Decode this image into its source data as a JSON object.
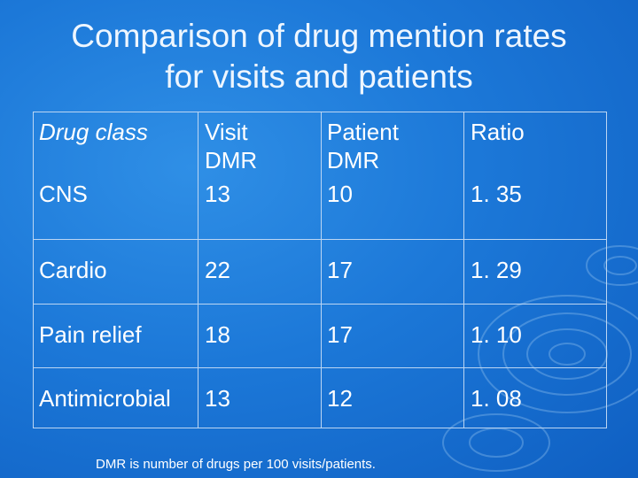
{
  "title": {
    "line1": "Comparison of drug mention rates",
    "line2": "for visits and patients"
  },
  "table": {
    "headers": {
      "drug_class": "Drug class",
      "visit_dmr_line1": "Visit",
      "visit_dmr_line2": "DMR",
      "patient_dmr_line1": "Patient",
      "patient_dmr_line2": "DMR",
      "ratio": "Ratio"
    },
    "rows": [
      {
        "drug_class": "CNS",
        "visit_dmr": "13",
        "patient_dmr": "10",
        "ratio": "1. 35"
      },
      {
        "drug_class": "Cardio",
        "visit_dmr": "22",
        "patient_dmr": "17",
        "ratio": "1. 29"
      },
      {
        "drug_class": "Pain relief",
        "visit_dmr": "18",
        "patient_dmr": "17",
        "ratio": "1. 10"
      },
      {
        "drug_class": "Antimicrobial",
        "visit_dmr": "13",
        "patient_dmr": "12",
        "ratio": "1. 08"
      }
    ]
  },
  "footnote": "DMR is number of drugs per 100 visits/patients.",
  "colors": {
    "background": "#1c78d8",
    "text": "#ffffff",
    "border": "#bcd6f3"
  }
}
